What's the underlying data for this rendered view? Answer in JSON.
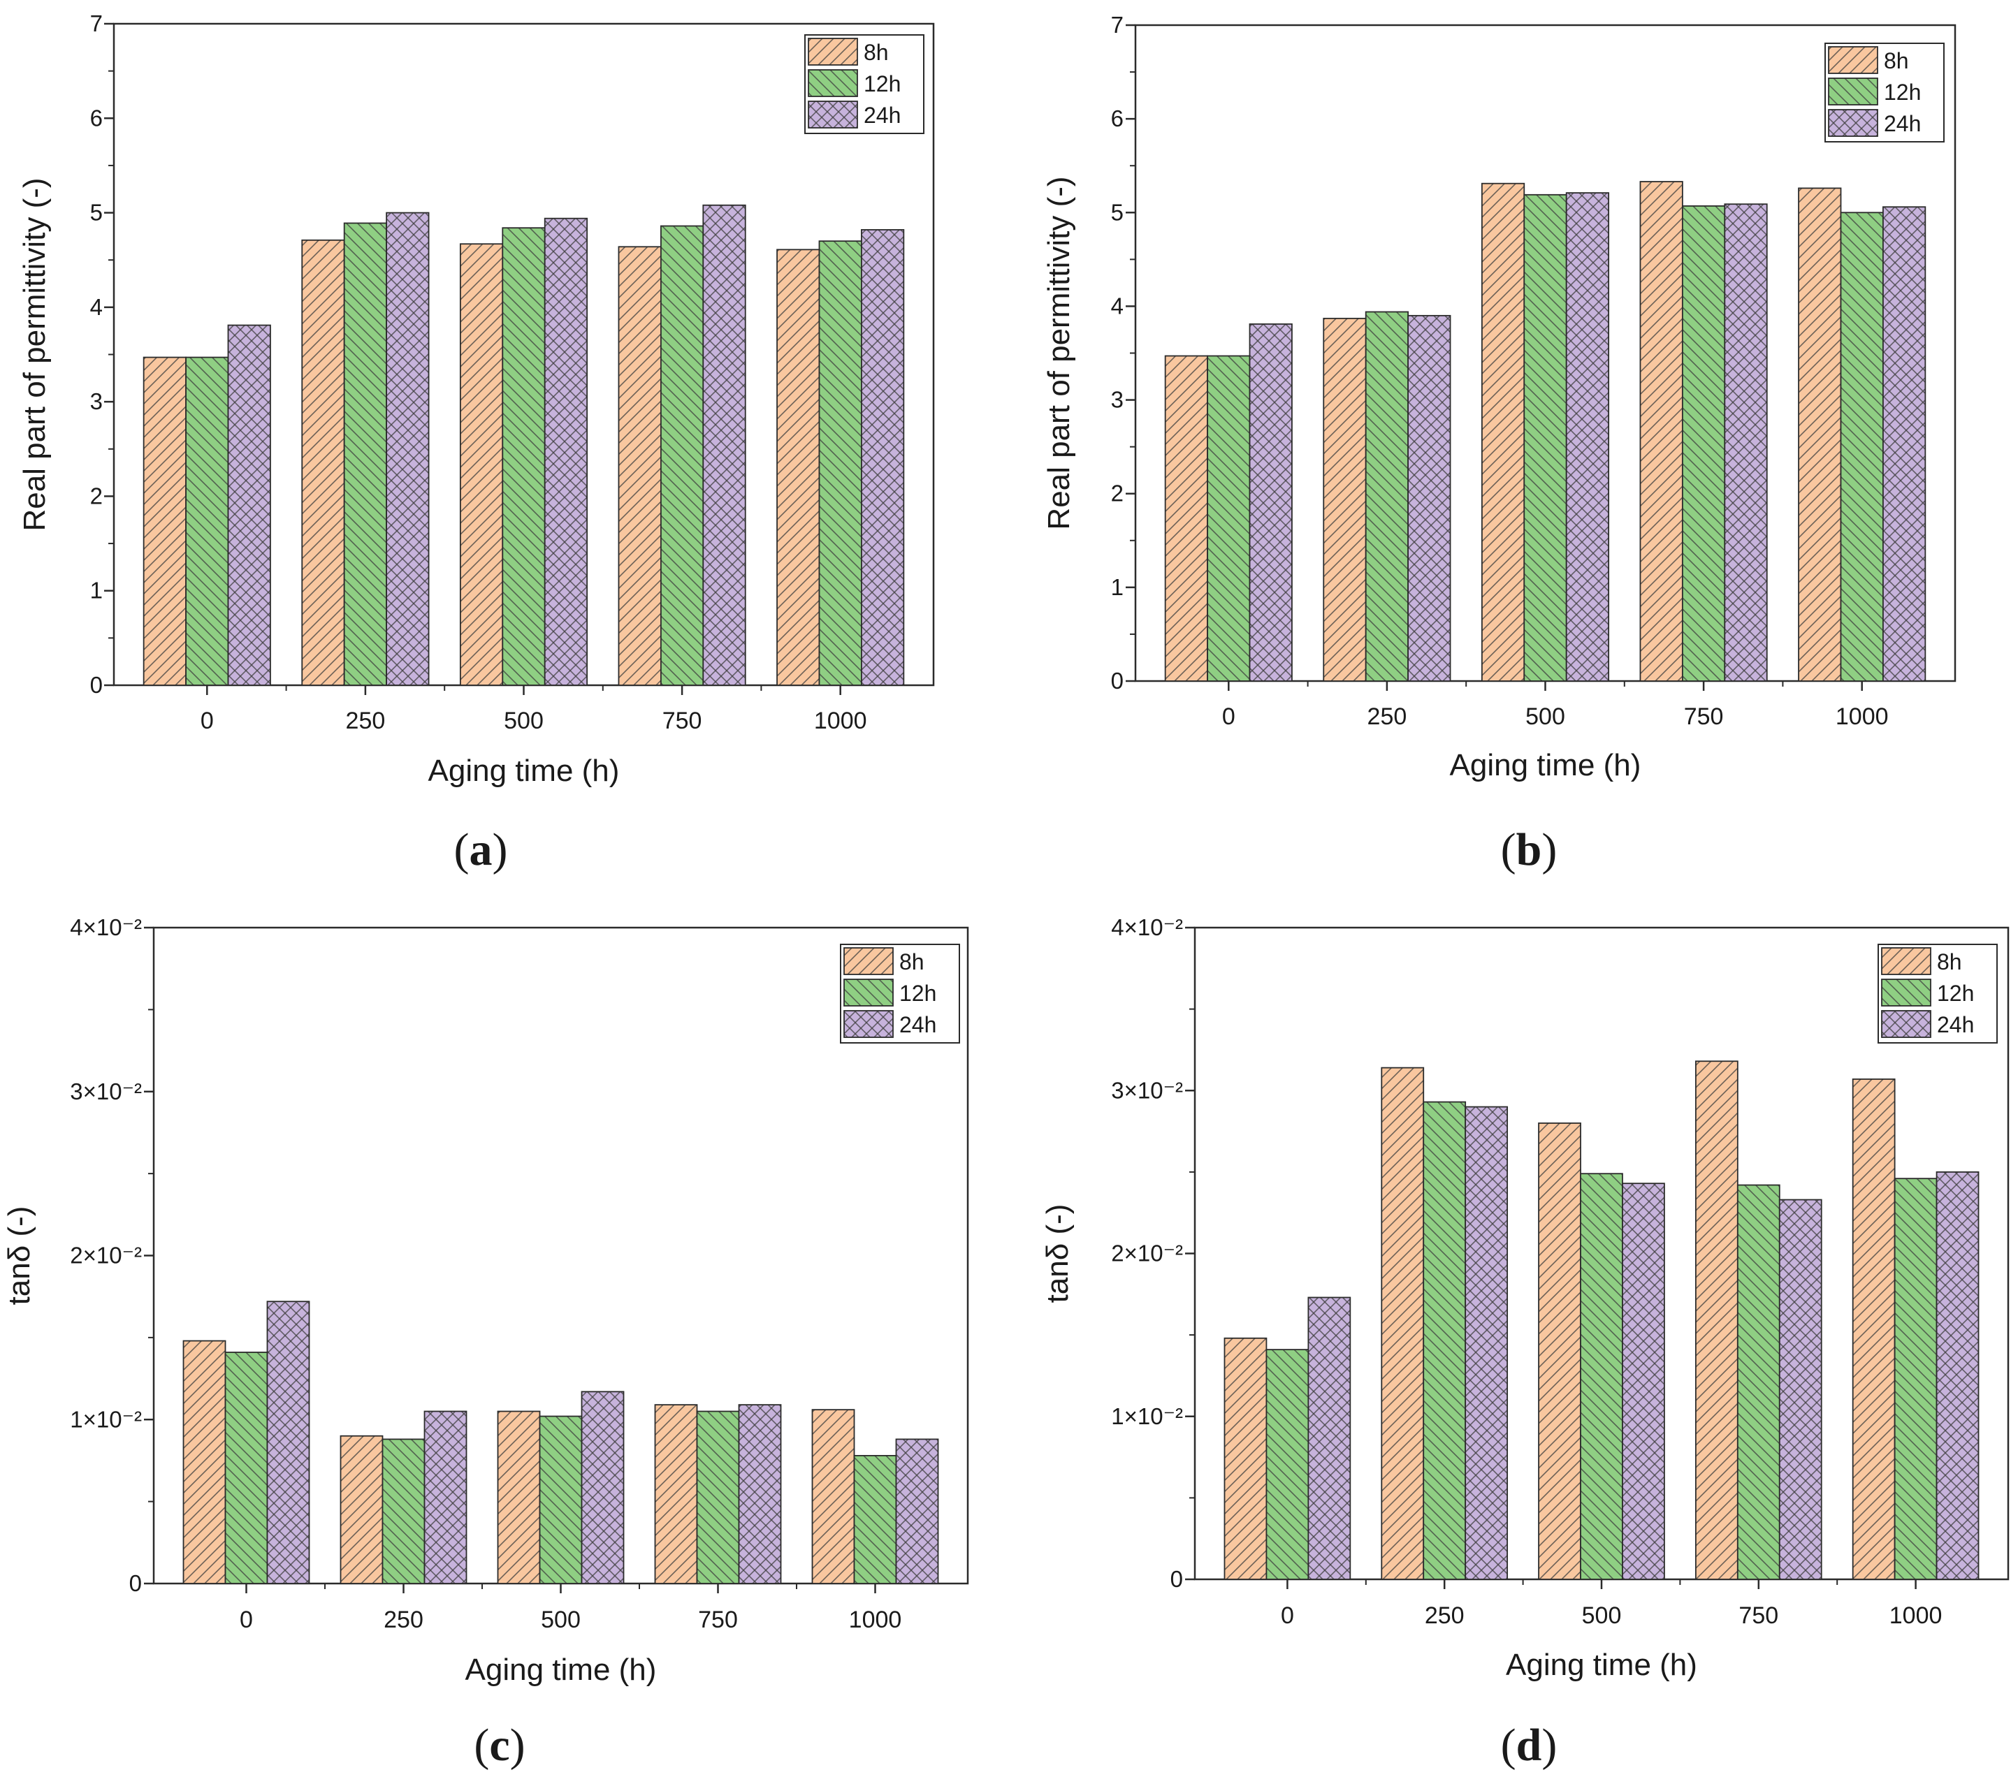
{
  "figure": {
    "panels": [
      {
        "label_open": "(",
        "label_letter": "a",
        "label_close": ")"
      },
      {
        "label_open": "(",
        "label_letter": "b",
        "label_close": ")"
      },
      {
        "label_open": "(",
        "label_letter": "c",
        "label_close": ")"
      },
      {
        "label_open": "(",
        "label_letter": "d",
        "label_close": ")"
      }
    ]
  },
  "colors": {
    "8h": "#f9c79f",
    "12h": "#8fcf83",
    "24h": "#c7b3dc",
    "stroke": "#2b2b2b"
  },
  "chart_data": [
    {
      "type": "bar",
      "panel": "a",
      "categories": [
        "0",
        "250",
        "500",
        "750",
        "1000"
      ],
      "series": [
        {
          "name": "8h",
          "pattern": "hatch-up",
          "values": [
            3.47,
            4.71,
            4.67,
            4.64,
            4.61
          ]
        },
        {
          "name": "12h",
          "pattern": "hatch-down",
          "values": [
            3.47,
            4.89,
            4.84,
            4.86,
            4.7
          ]
        },
        {
          "name": "24h",
          "pattern": "crosshatch",
          "values": [
            3.81,
            5.0,
            4.94,
            5.08,
            4.82
          ]
        }
      ],
      "xlabel": "Aging time (h)",
      "ylabel": "Real part of permittivity (-)",
      "ylim": [
        0,
        7
      ],
      "yticks": [
        0,
        1,
        2,
        3,
        4,
        5,
        6,
        7
      ],
      "ytick_labels": [
        "0",
        "1",
        "2",
        "3",
        "4",
        "5",
        "6",
        "7"
      ],
      "legend": "top-right",
      "grid": false
    },
    {
      "type": "bar",
      "panel": "b",
      "categories": [
        "0",
        "250",
        "500",
        "750",
        "1000"
      ],
      "series": [
        {
          "name": "8h",
          "pattern": "hatch-up",
          "values": [
            3.47,
            3.87,
            5.31,
            5.33,
            5.26
          ]
        },
        {
          "name": "12h",
          "pattern": "hatch-down",
          "values": [
            3.47,
            3.94,
            5.19,
            5.07,
            5.0
          ]
        },
        {
          "name": "24h",
          "pattern": "crosshatch",
          "values": [
            3.81,
            3.9,
            5.21,
            5.09,
            5.06
          ]
        }
      ],
      "xlabel": "Aging time (h)",
      "ylabel": "Real part of permittivity (-)",
      "ylim": [
        0,
        7
      ],
      "yticks": [
        0,
        1,
        2,
        3,
        4,
        5,
        6,
        7
      ],
      "ytick_labels": [
        "0",
        "1",
        "2",
        "3",
        "4",
        "5",
        "6",
        "7"
      ],
      "legend": "top-right",
      "grid": false
    },
    {
      "type": "bar",
      "panel": "c",
      "categories": [
        "0",
        "250",
        "500",
        "750",
        "1000"
      ],
      "series": [
        {
          "name": "8h",
          "pattern": "hatch-up",
          "values": [
            0.0148,
            0.009,
            0.0105,
            0.0109,
            0.0106
          ]
        },
        {
          "name": "12h",
          "pattern": "hatch-down",
          "values": [
            0.0141,
            0.0088,
            0.0102,
            0.0105,
            0.0078
          ]
        },
        {
          "name": "24h",
          "pattern": "crosshatch",
          "values": [
            0.0172,
            0.0105,
            0.0117,
            0.0109,
            0.0088
          ]
        }
      ],
      "xlabel": "Aging time (h)",
      "ylabel": "tanδ (-)",
      "ylim": [
        0,
        0.04
      ],
      "yticks": [
        0,
        0.01,
        0.02,
        0.03,
        0.04
      ],
      "ytick_labels": [
        "0",
        "1×10⁻²",
        "2×10⁻²",
        "3×10⁻²",
        "4×10⁻²"
      ],
      "legend": "top-right",
      "grid": false
    },
    {
      "type": "bar",
      "panel": "d",
      "categories": [
        "0",
        "250",
        "500",
        "750",
        "1000"
      ],
      "series": [
        {
          "name": "8h",
          "pattern": "hatch-up",
          "values": [
            0.0148,
            0.0314,
            0.028,
            0.0318,
            0.0307
          ]
        },
        {
          "name": "12h",
          "pattern": "hatch-down",
          "values": [
            0.0141,
            0.0293,
            0.0249,
            0.0242,
            0.0246
          ]
        },
        {
          "name": "24h",
          "pattern": "crosshatch",
          "values": [
            0.0173,
            0.029,
            0.0243,
            0.0233,
            0.025
          ]
        }
      ],
      "xlabel": "Aging time (h)",
      "ylabel": "tanδ (-)",
      "ylim": [
        0,
        0.04
      ],
      "yticks": [
        0,
        0.01,
        0.02,
        0.03,
        0.04
      ],
      "ytick_labels": [
        "0",
        "1×10⁻²",
        "2×10⁻²",
        "3×10⁻²",
        "4×10⁻²"
      ],
      "legend": "top-right",
      "grid": false
    }
  ]
}
